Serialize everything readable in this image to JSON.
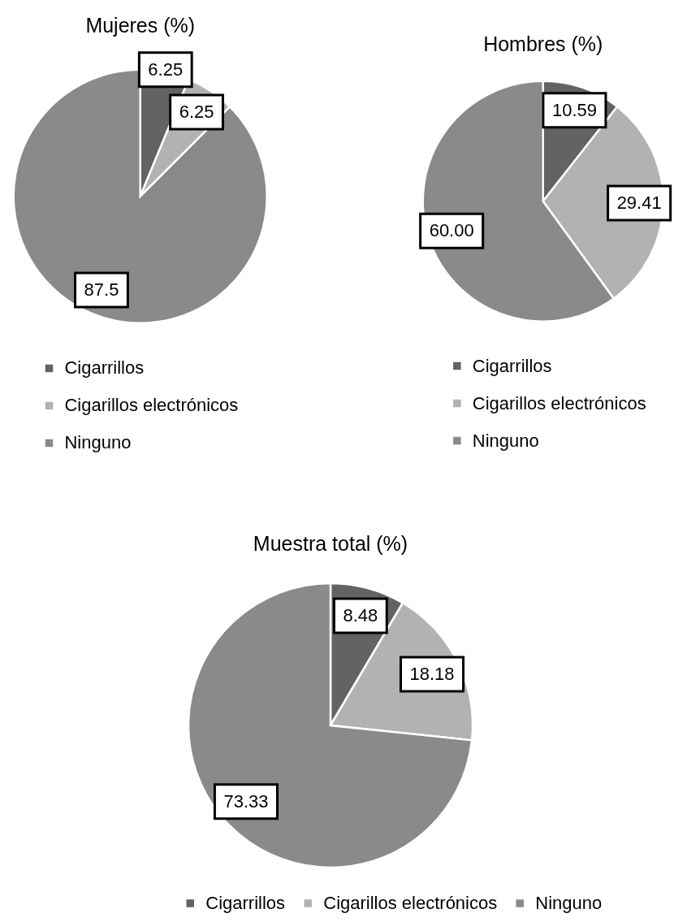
{
  "chart_data": [
    {
      "type": "pie",
      "title": "Mujeres (%)",
      "categories": [
        "Cigarrillos",
        "Cigarillos electrónicos",
        "Ninguno"
      ],
      "values": [
        6.25,
        6.25,
        87.5
      ],
      "colors": [
        "#636363",
        "#b2b2b2",
        "#8a8a8a"
      ],
      "data_labels": true,
      "legend": "bottom"
    },
    {
      "type": "pie",
      "title": "Hombres (%)",
      "categories": [
        "Cigarrillos",
        "Cigarillos electrónicos",
        "Ninguno"
      ],
      "values": [
        10.59,
        29.41,
        60.0
      ],
      "colors": [
        "#636363",
        "#b2b2b2",
        "#8a8a8a"
      ],
      "value_labels": [
        "10.59",
        "29.41",
        "60.00"
      ],
      "legend": "bottom"
    },
    {
      "type": "pie",
      "title": "Muestra total (%)",
      "categories": [
        "Cigarrillos",
        "Cigarillos electrónicos",
        "Ninguno"
      ],
      "values": [
        8.48,
        18.18,
        73.33
      ],
      "colors": [
        "#636363",
        "#b2b2b2",
        "#8a8a8a"
      ],
      "data_labels": true,
      "legend": "bottom"
    }
  ]
}
